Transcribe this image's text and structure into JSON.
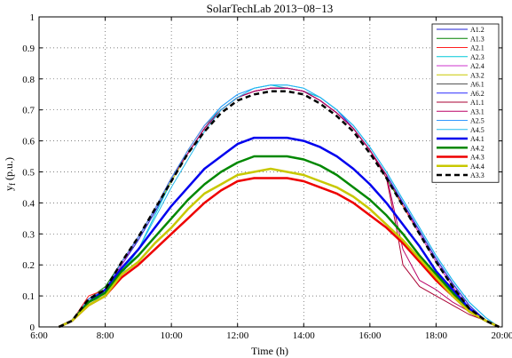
{
  "chart_data": {
    "type": "line",
    "title": "SolarTechLab 2013−08−13",
    "xlabel": "Time (h)",
    "ylabel": "y",
    "ylabel_sub": "f",
    "ylabel_unit": "(p.u.)",
    "xlim": [
      6,
      20
    ],
    "ylim": [
      0,
      1
    ],
    "grid": true,
    "legend_position": "top-right",
    "x_ticks": [
      {
        "v": 6,
        "label": "6:00"
      },
      {
        "v": 8,
        "label": "8:00"
      },
      {
        "v": 10,
        "label": "10:00"
      },
      {
        "v": 12,
        "label": "12:00"
      },
      {
        "v": 14,
        "label": "14:00"
      },
      {
        "v": 16,
        "label": "16:00"
      },
      {
        "v": 18,
        "label": "18:00"
      },
      {
        "v": 20,
        "label": "20:00"
      }
    ],
    "y_ticks": [
      {
        "v": 0,
        "label": "0"
      },
      {
        "v": 0.1,
        "label": "0.1"
      },
      {
        "v": 0.2,
        "label": "0.2"
      },
      {
        "v": 0.3,
        "label": "0.3"
      },
      {
        "v": 0.4,
        "label": "0.4"
      },
      {
        "v": 0.5,
        "label": "0.5"
      },
      {
        "v": 0.6,
        "label": "0.6"
      },
      {
        "v": 0.7,
        "label": "0.7"
      },
      {
        "v": 0.8,
        "label": "0.8"
      },
      {
        "v": 0.9,
        "label": "0.9"
      },
      {
        "v": 1,
        "label": "1"
      }
    ],
    "series": [
      {
        "name": "A1.2",
        "color": "#1f1fd6",
        "width": 1,
        "dash": "",
        "x": [
          6.6,
          7.0,
          7.5,
          8.0,
          8.5,
          9.0,
          9.5,
          10.0,
          10.5,
          11.0,
          11.5,
          12.0,
          12.5,
          13.0,
          13.5,
          14.0,
          14.5,
          15.0,
          15.5,
          16.0,
          16.5,
          17.0,
          17.5,
          18.0,
          18.5,
          19.0,
          19.5,
          19.9
        ],
        "y": [
          0,
          0.02,
          0.09,
          0.12,
          0.2,
          0.28,
          0.37,
          0.47,
          0.56,
          0.64,
          0.7,
          0.74,
          0.76,
          0.77,
          0.77,
          0.76,
          0.74,
          0.7,
          0.64,
          0.57,
          0.49,
          0.4,
          0.31,
          0.22,
          0.14,
          0.07,
          0.02,
          0
        ]
      },
      {
        "name": "A1.3",
        "color": "#008000",
        "width": 1,
        "dash": "",
        "x": [
          6.6,
          7.0,
          7.5,
          8.0,
          8.5,
          9.0,
          9.5,
          10.0,
          10.5,
          11.0,
          11.5,
          12.0,
          12.5,
          13.0,
          13.5,
          14.0,
          14.5,
          15.0,
          15.5,
          16.0,
          16.5,
          17.0,
          17.5,
          18.0,
          18.5,
          19.0,
          19.5,
          19.9
        ],
        "y": [
          0,
          0.02,
          0.09,
          0.13,
          0.21,
          0.29,
          0.38,
          0.48,
          0.56,
          0.64,
          0.7,
          0.74,
          0.76,
          0.77,
          0.77,
          0.76,
          0.73,
          0.69,
          0.64,
          0.57,
          0.48,
          0.39,
          0.3,
          0.21,
          0.13,
          0.06,
          0.02,
          0
        ]
      },
      {
        "name": "A2.1",
        "color": "#ff2020",
        "width": 1,
        "dash": "",
        "x": [
          6.6,
          7.0,
          7.5,
          8.0,
          8.5,
          9.0,
          9.5,
          10.0,
          10.5,
          11.0,
          11.5,
          12.0,
          12.5,
          13.0,
          13.5,
          14.0,
          14.5,
          15.0,
          15.5,
          16.0,
          16.5,
          17.0,
          17.5,
          18.0,
          18.5,
          19.0,
          19.5,
          19.9
        ],
        "y": [
          0,
          0.02,
          0.1,
          0.12,
          0.21,
          0.29,
          0.38,
          0.48,
          0.57,
          0.65,
          0.7,
          0.74,
          0.76,
          0.77,
          0.77,
          0.76,
          0.73,
          0.69,
          0.64,
          0.57,
          0.49,
          0.39,
          0.3,
          0.21,
          0.13,
          0.06,
          0.02,
          0
        ]
      },
      {
        "name": "A2.3",
        "color": "#00c8d8",
        "width": 1,
        "dash": "",
        "x": [
          6.6,
          7.0,
          7.5,
          8.0,
          8.5,
          9.0,
          9.5,
          10.0,
          10.5,
          11.0,
          11.5,
          12.0,
          12.5,
          13.0,
          13.5,
          14.0,
          14.5,
          15.0,
          15.5,
          16.0,
          16.5,
          17.0,
          17.5,
          18.0,
          18.5,
          19.0,
          19.5,
          19.9
        ],
        "y": [
          0,
          0.02,
          0.09,
          0.11,
          0.18,
          0.25,
          0.36,
          0.47,
          0.56,
          0.64,
          0.71,
          0.75,
          0.77,
          0.78,
          0.77,
          0.76,
          0.74,
          0.7,
          0.65,
          0.58,
          0.5,
          0.41,
          0.32,
          0.23,
          0.15,
          0.08,
          0.03,
          0
        ]
      },
      {
        "name": "A2.4",
        "color": "#cc33cc",
        "width": 1,
        "dash": "",
        "x": [
          6.6,
          7.0,
          7.5,
          8.0,
          8.5,
          9.0,
          9.5,
          10.0,
          10.5,
          11.0,
          11.5,
          12.0,
          12.5,
          13.0,
          13.5,
          14.0,
          14.5,
          15.0,
          15.5,
          16.0,
          16.5,
          17.0,
          17.5,
          18.0,
          18.5,
          19.0,
          19.5,
          19.9
        ],
        "y": [
          0,
          0.02,
          0.09,
          0.12,
          0.2,
          0.29,
          0.38,
          0.48,
          0.56,
          0.64,
          0.7,
          0.74,
          0.76,
          0.77,
          0.77,
          0.76,
          0.73,
          0.69,
          0.64,
          0.57,
          0.49,
          0.4,
          0.3,
          0.21,
          0.13,
          0.06,
          0.02,
          0
        ]
      },
      {
        "name": "A3.2",
        "color": "#c8c800",
        "width": 1,
        "dash": "",
        "x": [
          6.6,
          7.0,
          7.5,
          8.0,
          8.5,
          9.0,
          9.5,
          10.0,
          10.5,
          11.0,
          11.5,
          12.0,
          12.5,
          13.0,
          13.5,
          14.0,
          14.5,
          15.0,
          15.5,
          16.0,
          16.5,
          17.0,
          17.5,
          18.0,
          18.5,
          19.0,
          19.5,
          19.9
        ],
        "y": [
          0,
          0.02,
          0.09,
          0.12,
          0.21,
          0.29,
          0.38,
          0.47,
          0.56,
          0.64,
          0.7,
          0.74,
          0.76,
          0.77,
          0.77,
          0.76,
          0.73,
          0.69,
          0.64,
          0.57,
          0.49,
          0.4,
          0.31,
          0.22,
          0.14,
          0.07,
          0.02,
          0
        ]
      },
      {
        "name": "A6.1",
        "color": "#555555",
        "width": 1,
        "dash": "",
        "x": [
          6.6,
          7.0,
          7.5,
          8.0,
          8.5,
          9.0,
          9.5,
          10.0,
          10.5,
          11.0,
          11.5,
          12.0,
          12.5,
          13.0,
          13.5,
          14.0,
          14.5,
          15.0,
          15.5,
          16.0,
          16.5,
          17.0,
          17.5,
          18.0,
          18.5,
          19.0,
          19.5,
          19.9
        ],
        "y": [
          0,
          0.02,
          0.09,
          0.12,
          0.21,
          0.29,
          0.38,
          0.48,
          0.56,
          0.64,
          0.7,
          0.74,
          0.76,
          0.77,
          0.77,
          0.76,
          0.73,
          0.69,
          0.64,
          0.57,
          0.49,
          0.4,
          0.31,
          0.22,
          0.14,
          0.07,
          0.02,
          0
        ]
      },
      {
        "name": "A6.2",
        "color": "#2a2aff",
        "width": 1,
        "dash": "",
        "x": [
          6.6,
          7.0,
          7.5,
          8.0,
          8.5,
          9.0,
          9.5,
          10.0,
          10.5,
          11.0,
          11.5,
          12.0,
          12.5,
          13.0,
          13.5,
          14.0,
          14.5,
          15.0,
          15.5,
          16.0,
          16.5,
          17.0,
          17.5,
          18.0,
          18.5,
          19.0,
          19.5,
          19.9
        ],
        "y": [
          0,
          0.02,
          0.09,
          0.12,
          0.21,
          0.29,
          0.38,
          0.48,
          0.56,
          0.64,
          0.7,
          0.74,
          0.76,
          0.77,
          0.77,
          0.76,
          0.73,
          0.69,
          0.64,
          0.57,
          0.49,
          0.4,
          0.31,
          0.22,
          0.14,
          0.07,
          0.02,
          0
        ]
      },
      {
        "name": "A1.1",
        "color": "#aa0033",
        "width": 1,
        "dash": "",
        "x": [
          6.6,
          7.0,
          7.5,
          8.0,
          8.5,
          9.0,
          9.5,
          10.0,
          10.5,
          11.0,
          11.5,
          12.0,
          12.5,
          13.0,
          13.5,
          14.0,
          14.5,
          15.0,
          15.5,
          16.0,
          16.5,
          16.8,
          17.0,
          17.5,
          18.0,
          18.5,
          19.0,
          19.5,
          19.9
        ],
        "y": [
          0,
          0.02,
          0.09,
          0.12,
          0.21,
          0.29,
          0.38,
          0.48,
          0.56,
          0.64,
          0.7,
          0.74,
          0.76,
          0.77,
          0.77,
          0.76,
          0.73,
          0.69,
          0.64,
          0.57,
          0.48,
          0.32,
          0.2,
          0.13,
          0.1,
          0.07,
          0.04,
          0.02,
          0
        ]
      },
      {
        "name": "A3.1",
        "color": "#bb0066",
        "width": 1,
        "dash": "",
        "x": [
          6.6,
          7.0,
          7.5,
          8.0,
          8.5,
          9.0,
          9.5,
          10.0,
          10.5,
          11.0,
          11.5,
          12.0,
          12.5,
          13.0,
          13.5,
          14.0,
          14.5,
          15.0,
          15.5,
          16.0,
          16.5,
          17.0,
          17.5,
          18.0,
          18.5,
          19.0,
          19.5,
          19.9
        ],
        "y": [
          0,
          0.02,
          0.09,
          0.12,
          0.21,
          0.29,
          0.38,
          0.48,
          0.56,
          0.64,
          0.7,
          0.74,
          0.76,
          0.77,
          0.77,
          0.76,
          0.73,
          0.69,
          0.64,
          0.57,
          0.49,
          0.25,
          0.15,
          0.12,
          0.08,
          0.05,
          0.02,
          0
        ]
      },
      {
        "name": "A2.5",
        "color": "#3399ff",
        "width": 1,
        "dash": "",
        "x": [
          6.6,
          7.0,
          7.5,
          8.0,
          8.5,
          9.0,
          9.5,
          10.0,
          10.5,
          11.0,
          11.5,
          12.0,
          12.5,
          13.0,
          13.5,
          14.0,
          14.5,
          15.0,
          15.5,
          16.0,
          16.5,
          17.0,
          17.5,
          18.0,
          18.5,
          19.0,
          19.5,
          19.9
        ],
        "y": [
          0,
          0.02,
          0.09,
          0.12,
          0.21,
          0.29,
          0.38,
          0.48,
          0.57,
          0.65,
          0.71,
          0.75,
          0.77,
          0.78,
          0.78,
          0.77,
          0.74,
          0.7,
          0.65,
          0.58,
          0.5,
          0.41,
          0.32,
          0.23,
          0.15,
          0.08,
          0.03,
          0
        ]
      },
      {
        "name": "A4.5",
        "color": "#22bbee",
        "width": 1,
        "dash": "",
        "x": [
          6.6,
          7.0,
          7.5,
          8.0,
          8.5,
          9.0,
          9.5,
          10.0,
          10.5,
          11.0,
          11.5,
          12.0,
          12.5,
          13.0,
          13.5,
          14.0,
          14.5,
          15.0,
          15.5,
          16.0,
          16.5,
          17.0,
          17.5,
          18.0,
          18.5,
          19.0,
          19.5,
          19.9
        ],
        "y": [
          0,
          0.02,
          0.08,
          0.1,
          0.17,
          0.25,
          0.35,
          0.45,
          0.54,
          0.63,
          0.7,
          0.74,
          0.77,
          0.78,
          0.78,
          0.77,
          0.74,
          0.7,
          0.65,
          0.58,
          0.5,
          0.41,
          0.32,
          0.23,
          0.15,
          0.08,
          0.03,
          0
        ]
      },
      {
        "name": "A4.1",
        "color": "#0000ee",
        "width": 2.5,
        "dash": "",
        "x": [
          6.6,
          7.0,
          7.5,
          8.0,
          8.5,
          9.0,
          9.5,
          10.0,
          10.5,
          11.0,
          11.5,
          12.0,
          12.5,
          13.0,
          13.5,
          14.0,
          14.5,
          15.0,
          15.5,
          16.0,
          16.5,
          17.0,
          17.5,
          18.0,
          18.5,
          19.0,
          19.5,
          19.9
        ],
        "y": [
          0,
          0.02,
          0.08,
          0.12,
          0.19,
          0.25,
          0.32,
          0.39,
          0.45,
          0.51,
          0.55,
          0.59,
          0.61,
          0.61,
          0.61,
          0.6,
          0.58,
          0.55,
          0.51,
          0.46,
          0.4,
          0.33,
          0.26,
          0.18,
          0.12,
          0.06,
          0.02,
          0
        ]
      },
      {
        "name": "A4.2",
        "color": "#008800",
        "width": 2.5,
        "dash": "",
        "x": [
          6.6,
          7.0,
          7.5,
          8.0,
          8.5,
          9.0,
          9.5,
          10.0,
          10.5,
          11.0,
          11.5,
          12.0,
          12.5,
          13.0,
          13.5,
          14.0,
          14.5,
          15.0,
          15.5,
          16.0,
          16.5,
          17.0,
          17.5,
          18.0,
          18.5,
          19.0,
          19.5,
          19.9
        ],
        "y": [
          0,
          0.02,
          0.08,
          0.11,
          0.18,
          0.23,
          0.29,
          0.35,
          0.41,
          0.46,
          0.5,
          0.53,
          0.55,
          0.55,
          0.55,
          0.54,
          0.52,
          0.49,
          0.45,
          0.41,
          0.36,
          0.3,
          0.23,
          0.17,
          0.11,
          0.05,
          0.02,
          0
        ]
      },
      {
        "name": "A4.3",
        "color": "#ee0000",
        "width": 2.5,
        "dash": "",
        "x": [
          6.6,
          7.0,
          7.5,
          8.0,
          8.5,
          9.0,
          9.5,
          10.0,
          10.5,
          11.0,
          11.5,
          12.0,
          12.5,
          13.0,
          13.5,
          14.0,
          14.5,
          15.0,
          15.5,
          16.0,
          16.5,
          17.0,
          17.5,
          18.0,
          18.5,
          19.0,
          19.5,
          19.9
        ],
        "y": [
          0,
          0.02,
          0.07,
          0.1,
          0.16,
          0.2,
          0.25,
          0.3,
          0.35,
          0.4,
          0.44,
          0.47,
          0.48,
          0.48,
          0.48,
          0.47,
          0.45,
          0.43,
          0.4,
          0.36,
          0.32,
          0.27,
          0.21,
          0.15,
          0.1,
          0.05,
          0.02,
          0
        ]
      },
      {
        "name": "A4.4",
        "color": "#c8c800",
        "width": 2.5,
        "dash": "",
        "x": [
          6.6,
          7.0,
          7.5,
          8.0,
          8.5,
          9.0,
          9.5,
          10.0,
          10.5,
          11.0,
          11.5,
          12.0,
          12.5,
          13.0,
          13.5,
          14.0,
          14.5,
          15.0,
          15.5,
          16.0,
          16.5,
          17.0,
          17.5,
          18.0,
          18.5,
          19.0,
          19.5,
          19.9
        ],
        "y": [
          0,
          0.02,
          0.07,
          0.1,
          0.17,
          0.21,
          0.27,
          0.32,
          0.38,
          0.43,
          0.46,
          0.49,
          0.5,
          0.51,
          0.5,
          0.49,
          0.47,
          0.45,
          0.42,
          0.38,
          0.33,
          0.28,
          0.22,
          0.16,
          0.1,
          0.05,
          0.02,
          0
        ]
      },
      {
        "name": "A3.3",
        "color": "#000000",
        "width": 2.5,
        "dash": "6,4",
        "x": [
          6.6,
          7.0,
          7.5,
          8.0,
          8.5,
          9.0,
          9.5,
          10.0,
          10.5,
          11.0,
          11.5,
          12.0,
          12.5,
          13.0,
          13.5,
          14.0,
          14.5,
          15.0,
          15.5,
          16.0,
          16.5,
          17.0,
          17.5,
          18.0,
          18.5,
          19.0,
          19.5,
          19.9
        ],
        "y": [
          0,
          0.02,
          0.09,
          0.12,
          0.21,
          0.29,
          0.38,
          0.47,
          0.56,
          0.63,
          0.69,
          0.73,
          0.75,
          0.76,
          0.76,
          0.75,
          0.72,
          0.68,
          0.63,
          0.56,
          0.48,
          0.39,
          0.3,
          0.21,
          0.13,
          0.06,
          0.02,
          0
        ]
      }
    ]
  }
}
